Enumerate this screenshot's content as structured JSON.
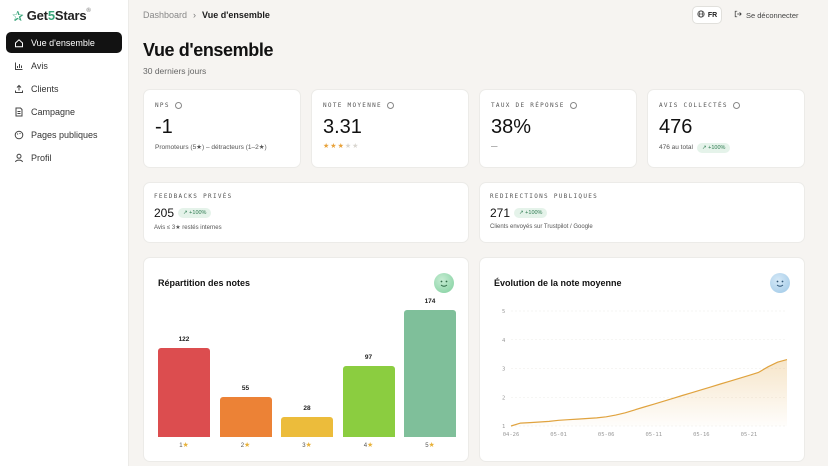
{
  "app": {
    "logo_prefix": "Get",
    "logo_five": "5",
    "logo_suffix": "Stars",
    "logo_mark": "®"
  },
  "sidebar": {
    "items": [
      {
        "label": "Vue d'ensemble",
        "icon": "home-icon",
        "active": true
      },
      {
        "label": "Avis",
        "icon": "bar-chart-icon",
        "active": false
      },
      {
        "label": "Clients",
        "icon": "upload-icon",
        "active": false
      },
      {
        "label": "Campagne",
        "icon": "document-icon",
        "active": false
      },
      {
        "label": "Pages publiques",
        "icon": "palette-icon",
        "active": false
      },
      {
        "label": "Profil",
        "icon": "user-icon",
        "active": false
      }
    ]
  },
  "header": {
    "breadcrumb_root": "Dashboard",
    "breadcrumb_sep": "›",
    "breadcrumb_current": "Vue d'ensemble",
    "lang": "FR",
    "logout": "Se déconnecter"
  },
  "page": {
    "title": "Vue d'ensemble",
    "subtitle": "30 derniers jours"
  },
  "kpis": {
    "nps": {
      "label": "NPS",
      "value": "-1",
      "sub": "Promoteurs (5★) – détracteurs (1–2★)"
    },
    "note": {
      "label": "NOTE MOYENNE",
      "value": "3.31",
      "stars_filled": 3,
      "stars_total": 5
    },
    "reponse": {
      "label": "TAUX DE RÉPONSE",
      "value": "38%",
      "sub": "—"
    },
    "avis": {
      "label": "AVIS COLLECTÉS",
      "value": "476",
      "sub": "476 au total",
      "badge": "↗ +100%"
    }
  },
  "feedbacks": {
    "label": "FEEDBACKS PRIVÉS",
    "value": "205",
    "badge": "↗ +100%",
    "sub": "Avis ≤ 3★ restés internes"
  },
  "redirections": {
    "label": "REDIRECTIONS PUBLIQUES",
    "value": "271",
    "badge": "↗ +100%",
    "sub": "Clients envoyés sur Trustpilot / Google"
  },
  "charts": {
    "distribution_title": "Répartition des notes",
    "evolution_title": "Évolution de la note moyenne"
  },
  "chart_data": [
    {
      "type": "bar",
      "title": "Répartition des notes",
      "categories": [
        "1",
        "2",
        "3",
        "4",
        "5"
      ],
      "values": [
        122,
        55,
        28,
        97,
        174
      ],
      "colors": [
        "#dc4d4f",
        "#ec8236",
        "#ecbc3b",
        "#8bcd40",
        "#7fbf9a"
      ],
      "category_suffix": "★"
    },
    {
      "type": "area",
      "title": "Évolution de la note moyenne",
      "x": [
        "04-26",
        "04-27",
        "04-28",
        "04-29",
        "04-30",
        "05-01",
        "05-02",
        "05-03",
        "05-04",
        "05-05",
        "05-06",
        "05-07",
        "05-08",
        "05-09",
        "05-10",
        "05-11",
        "05-12",
        "05-13",
        "05-14",
        "05-15",
        "05-16",
        "05-17",
        "05-18",
        "05-19",
        "05-20",
        "05-21",
        "05-22",
        "05-23",
        "05-24",
        "05-25"
      ],
      "y": [
        1.0,
        1.1,
        1.12,
        1.14,
        1.16,
        1.2,
        1.22,
        1.24,
        1.26,
        1.28,
        1.32,
        1.38,
        1.46,
        1.56,
        1.66,
        1.76,
        1.86,
        1.96,
        2.06,
        2.16,
        2.26,
        2.36,
        2.46,
        2.56,
        2.66,
        2.76,
        2.86,
        3.06,
        3.22,
        3.31
      ],
      "x_ticks": [
        "04-26",
        "05-01",
        "05-06",
        "05-11",
        "05-16",
        "05-21"
      ],
      "y_ticks": [
        1,
        2,
        3,
        4,
        5
      ],
      "ylim": [
        1,
        5
      ],
      "color": "#e0a33f"
    }
  ]
}
